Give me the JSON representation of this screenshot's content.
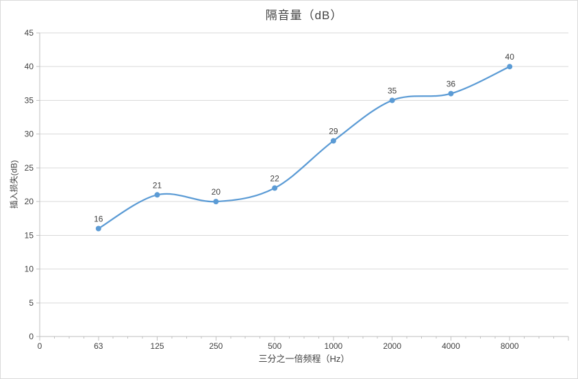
{
  "chart_data": {
    "type": "line",
    "smooth": true,
    "title": "隔音量（dB）",
    "xlabel": "三分之一倍频程（Hz）",
    "ylabel": "插入损失(dB)",
    "categories": [
      "63",
      "125",
      "250",
      "500",
      "1000",
      "2000",
      "4000",
      "8000"
    ],
    "values": [
      16,
      21,
      20,
      22,
      29,
      35,
      36,
      40
    ],
    "data_labels": [
      "16",
      "21",
      "20",
      "22",
      "29",
      "35",
      "36",
      "40"
    ],
    "x_origin_label": "0",
    "y_ticks": [
      "0",
      "5",
      "10",
      "15",
      "20",
      "25",
      "30",
      "35",
      "40",
      "45"
    ],
    "ylim": [
      0,
      45
    ],
    "grid": "horizontal",
    "legend": "none",
    "marker": "circle",
    "colors": {
      "series": "#5b9bd5",
      "gridline": "#d9d9d9",
      "axis": "#bfbfbf",
      "text": "#404040",
      "background": "#ffffff",
      "border": "#d9d9d9"
    }
  }
}
